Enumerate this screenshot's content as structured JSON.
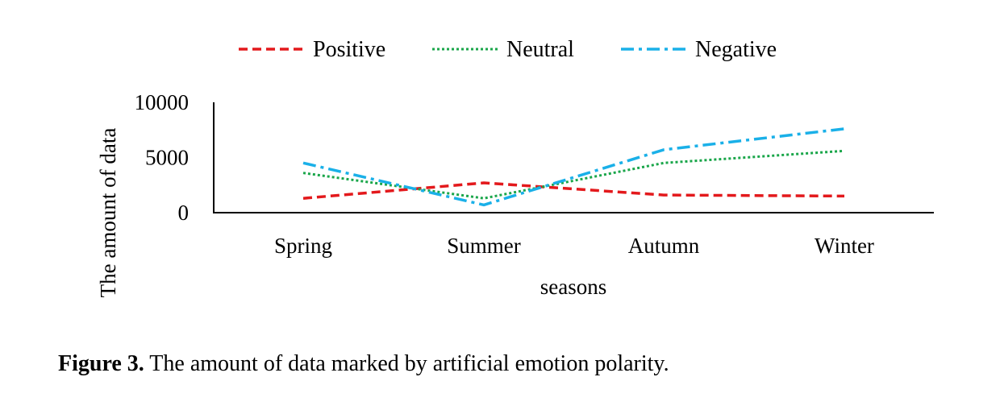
{
  "chart_data": {
    "type": "line",
    "title": "",
    "xlabel": "seasons",
    "ylabel": "The amount of data",
    "categories": [
      "Spring",
      "Summer",
      "Autumn",
      "Winter"
    ],
    "ylim": [
      0,
      10000
    ],
    "yticks": [
      0,
      5000,
      10000
    ],
    "grid": false,
    "legend_position": "top",
    "series": [
      {
        "name": "Positive",
        "values": [
          1300,
          2700,
          1600,
          1500
        ],
        "color": "#e3191c",
        "dash": "dash"
      },
      {
        "name": "Neutral",
        "values": [
          3600,
          1300,
          4500,
          5600
        ],
        "color": "#1aa64a",
        "dash": "dot"
      },
      {
        "name": "Negative",
        "values": [
          4500,
          700,
          5700,
          7600
        ],
        "color": "#1ab0e8",
        "dash": "dashdot"
      }
    ]
  },
  "caption": {
    "label": "Figure 3.",
    "text": " The amount of data marked by artificial emotion polarity."
  }
}
